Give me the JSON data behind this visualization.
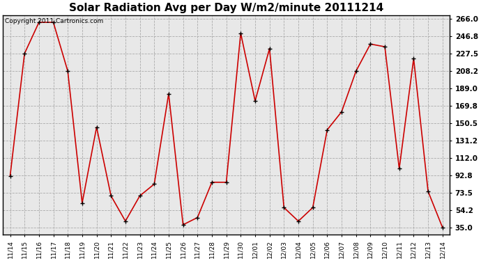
{
  "title": "Solar Radiation Avg per Day W/m2/minute 20111214",
  "copyright_text": "Copyright 2011 Cartronics.com",
  "labels": [
    "11/14",
    "11/15",
    "11/16",
    "11/17",
    "11/18",
    "11/19",
    "11/20",
    "11/21",
    "11/22",
    "11/23",
    "11/24",
    "11/25",
    "11/26",
    "11/27",
    "11/28",
    "11/29",
    "11/30",
    "12/01",
    "12/02",
    "12/03",
    "12/04",
    "12/05",
    "12/06",
    "12/07",
    "12/08",
    "12/09",
    "12/10",
    "12/11",
    "12/12",
    "12/13",
    "12/14"
  ],
  "values": [
    92.0,
    227.5,
    262.0,
    262.0,
    208.0,
    62.0,
    146.0,
    70.0,
    42.0,
    70.0,
    83.0,
    183.0,
    38.0,
    46.0,
    85.0,
    85.0,
    250.0,
    175.0,
    233.0,
    57.0,
    42.0,
    57.0,
    143.0,
    163.0,
    208.0,
    238.0,
    235.0,
    100.0,
    222.0,
    75.0,
    35.0
  ],
  "line_color": "#cc0000",
  "marker_color": "#000000",
  "plot_bg_color": "#e8e8e8",
  "fig_bg_color": "#ffffff",
  "grid_color": "#aaaaaa",
  "ylim_low": 27.0,
  "ylim_high": 270.0,
  "yticks": [
    35.0,
    54.2,
    73.5,
    92.8,
    112.0,
    131.2,
    150.5,
    169.8,
    189.0,
    208.2,
    227.5,
    246.8,
    266.0
  ],
  "title_fontsize": 11,
  "copyright_fontsize": 6.5,
  "tick_fontsize": 6.5,
  "ytick_fontsize": 7.5
}
